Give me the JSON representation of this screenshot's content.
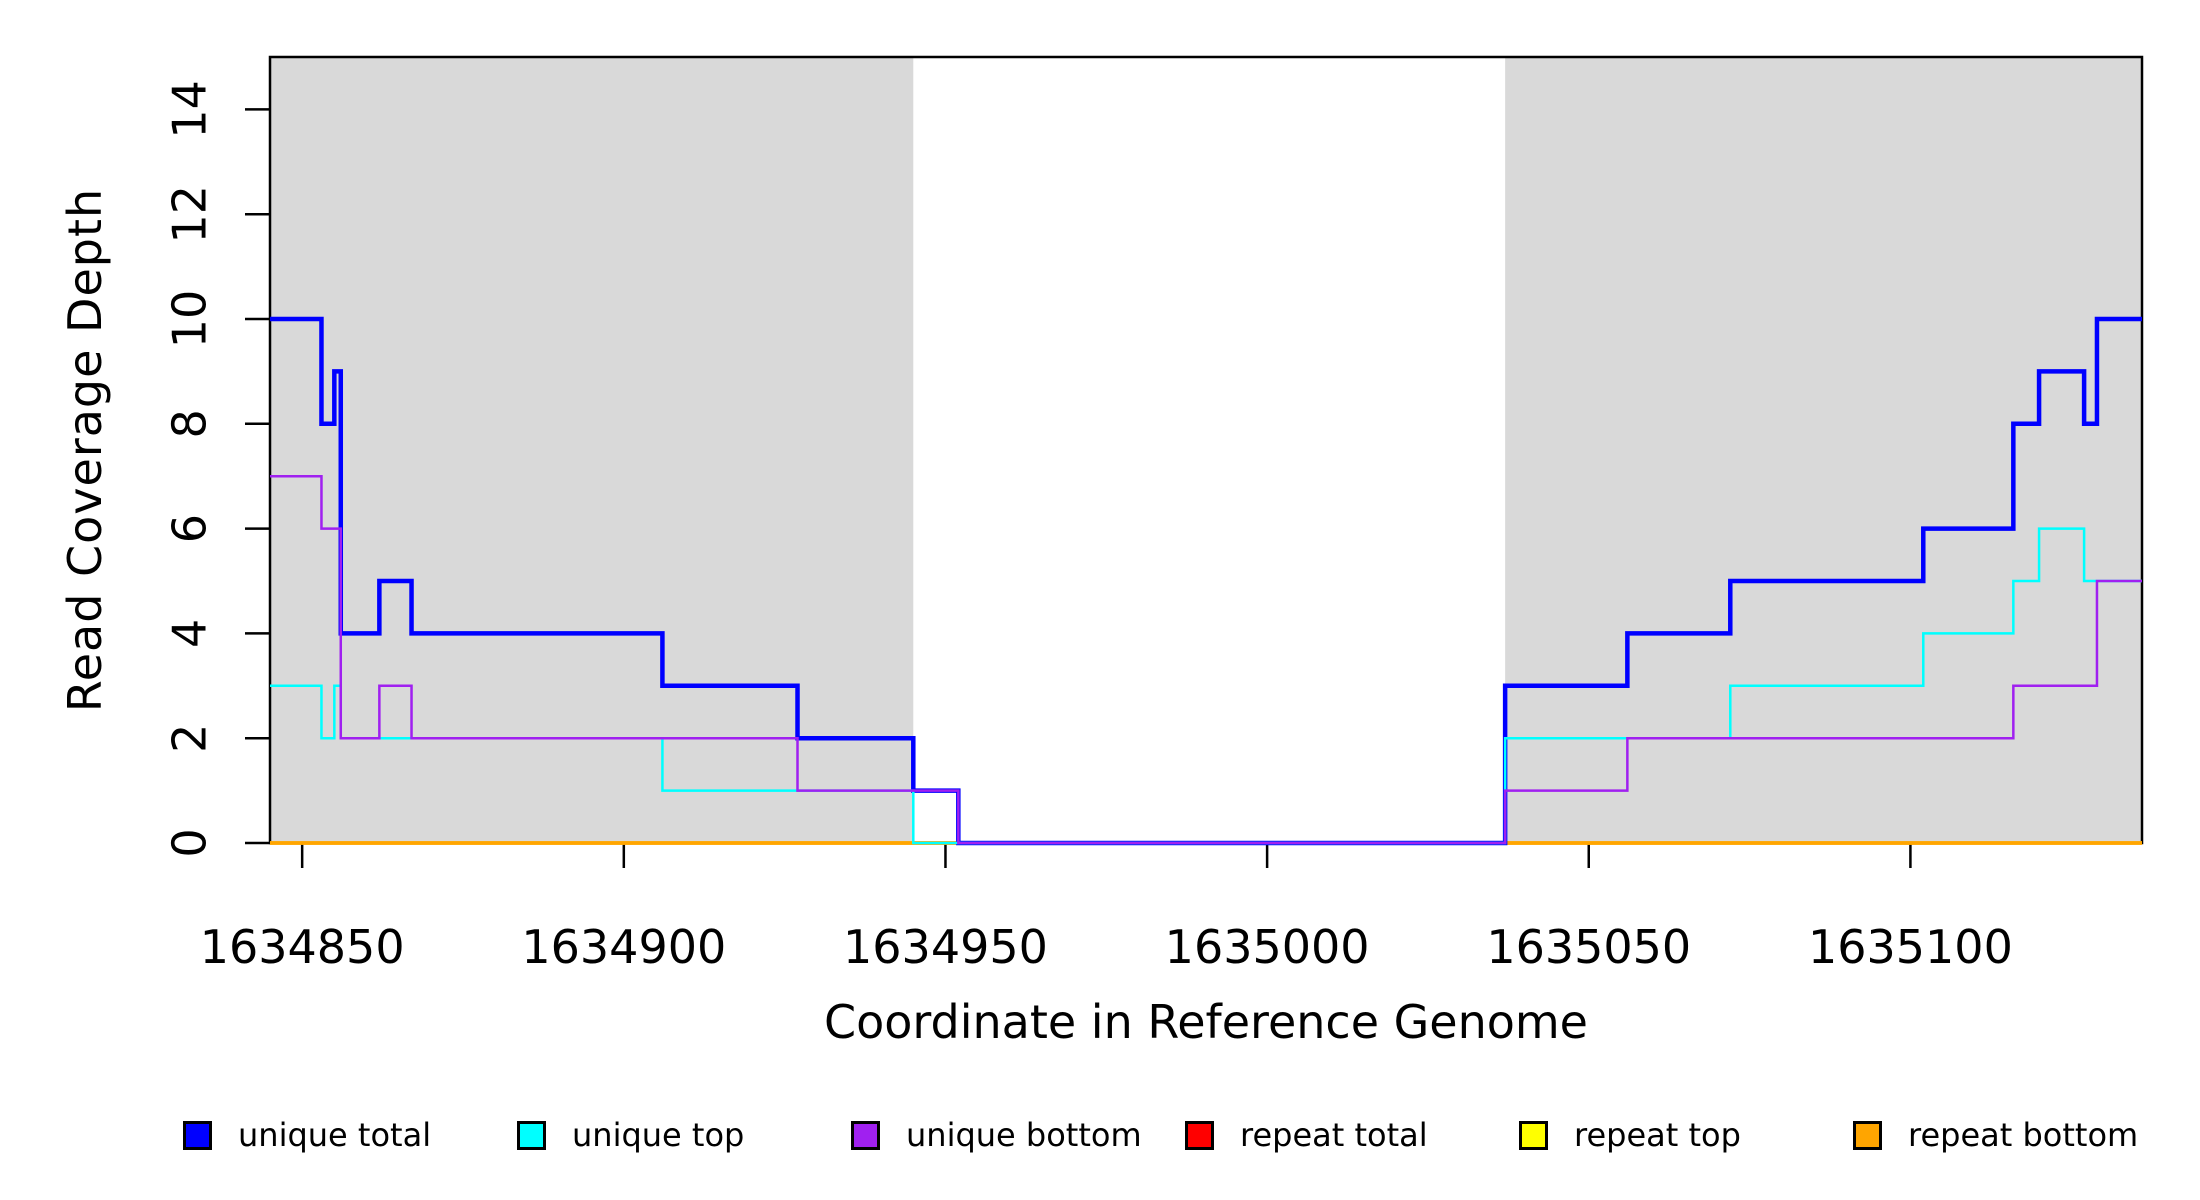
{
  "figure": {
    "xlabel": "Coordinate in Reference Genome",
    "ylabel": "Read Coverage Depth",
    "background_color": "#FFFFFF",
    "shaded_band_color": "#D9D9D9",
    "axis_color": "#000000"
  },
  "chart_data": {
    "type": "line",
    "subtype": "step-coverage",
    "title": "",
    "xlabel": "Coordinate in Reference Genome",
    "ylabel": "Read Coverage Depth",
    "xlim": [
      1634845,
      1635136
    ],
    "ylim": [
      0,
      15
    ],
    "x_ticks": [
      1634850,
      1634900,
      1634950,
      1635000,
      1635050,
      1635100
    ],
    "x_tick_labels": [
      "1634850",
      "1634900",
      "1634950",
      "1635000",
      "1635050",
      "1635100"
    ],
    "y_ticks": [
      0,
      2,
      4,
      6,
      8,
      10,
      12,
      14
    ],
    "y_tick_labels": [
      "0",
      "2",
      "4",
      "6",
      "8",
      "10",
      "12",
      "14"
    ],
    "grid": false,
    "legend_position": "bottom",
    "shaded_regions": [
      {
        "x0": 1634845,
        "x1": 1634945,
        "color": "#D9D9D9"
      },
      {
        "x0": 1635037,
        "x1": 1635136,
        "color": "#D9D9D9"
      }
    ],
    "series": [
      {
        "name": "repeat total",
        "color": "#FF0000",
        "width": 3.5,
        "steps": [
          [
            1634845,
            0
          ]
        ]
      },
      {
        "name": "repeat top",
        "color": "#FFFF00",
        "width": 3.5,
        "steps": [
          [
            1634845,
            0
          ]
        ]
      },
      {
        "name": "repeat bottom",
        "color": "#FFA500",
        "width": 3.5,
        "steps": [
          [
            1634845,
            0
          ]
        ]
      },
      {
        "name": "unique total",
        "color": "#0000FF",
        "width": 4.5,
        "steps": [
          [
            1634845,
            10
          ],
          [
            1634853,
            8
          ],
          [
            1634855,
            9
          ],
          [
            1634856,
            4
          ],
          [
            1634862,
            5
          ],
          [
            1634867,
            4
          ],
          [
            1634906,
            3
          ],
          [
            1634927,
            2
          ],
          [
            1634945,
            1
          ],
          [
            1634952,
            0
          ],
          [
            1635037,
            3
          ],
          [
            1635056,
            4
          ],
          [
            1635072,
            5
          ],
          [
            1635102,
            6
          ],
          [
            1635116,
            8
          ],
          [
            1635120,
            9
          ],
          [
            1635127,
            8
          ],
          [
            1635129,
            10
          ]
        ]
      },
      {
        "name": "unique top",
        "color": "#00FFFF",
        "width": 2.5,
        "steps": [
          [
            1634845,
            3
          ],
          [
            1634853,
            2
          ],
          [
            1634855,
            3
          ],
          [
            1634856,
            2
          ],
          [
            1634906,
            1
          ],
          [
            1634945,
            0
          ],
          [
            1635037,
            2
          ],
          [
            1635072,
            3
          ],
          [
            1635102,
            4
          ],
          [
            1635116,
            5
          ],
          [
            1635120,
            6
          ],
          [
            1635127,
            5
          ]
        ]
      },
      {
        "name": "unique bottom",
        "color": "#A020F0",
        "width": 2.5,
        "steps": [
          [
            1634845,
            7
          ],
          [
            1634853,
            6
          ],
          [
            1634856,
            2
          ],
          [
            1634862,
            3
          ],
          [
            1634867,
            2
          ],
          [
            1634927,
            1
          ],
          [
            1634952,
            0
          ],
          [
            1635037,
            1
          ],
          [
            1635056,
            2
          ],
          [
            1635116,
            3
          ],
          [
            1635129,
            5
          ]
        ]
      }
    ]
  },
  "legend": {
    "items": [
      {
        "label": "unique total",
        "color": "#0000FF"
      },
      {
        "label": "unique top",
        "color": "#00FFFF"
      },
      {
        "label": "unique bottom",
        "color": "#A020F0"
      },
      {
        "label": "repeat total",
        "color": "#FF0000"
      },
      {
        "label": "repeat top",
        "color": "#FFFF00"
      },
      {
        "label": "repeat bottom",
        "color": "#FFA500"
      }
    ]
  }
}
